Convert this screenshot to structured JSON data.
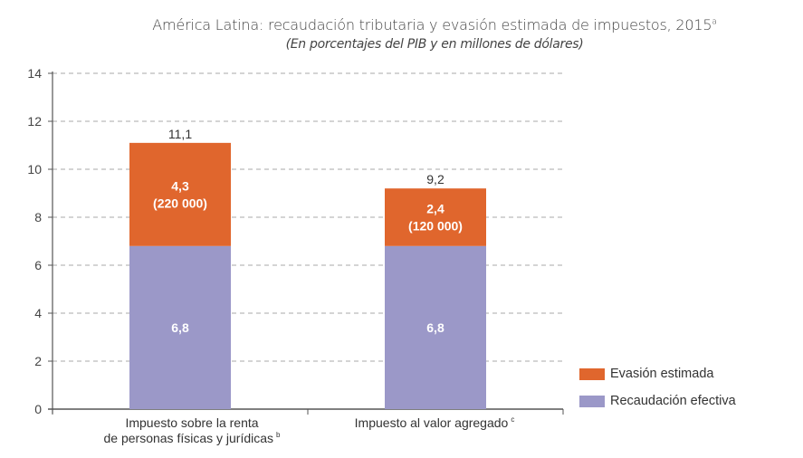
{
  "chart_data": {
    "type": "bar",
    "stacked": true,
    "title": "América Latina: recaudación tributaria y evasión estimada de impuestos, 2015",
    "title_footnote": "a",
    "subtitle": "(En porcentajes del PIB y en millones de dólares)",
    "xlabel": "",
    "ylabel": "",
    "ylim": [
      0,
      14
    ],
    "yticks": [
      0,
      2,
      4,
      6,
      8,
      10,
      12,
      14
    ],
    "grid": true,
    "legend_position": "right-bottom",
    "categories": [
      {
        "label_lines": [
          "Impuesto sobre la renta",
          "de personas físicas y jurídicas"
        ],
        "footnote": "b"
      },
      {
        "label_lines": [
          "Impuesto al valor agregado"
        ],
        "footnote": "c"
      }
    ],
    "series": [
      {
        "name": "Recaudación efectiva",
        "color": "#9b98c8",
        "values": [
          6.8,
          6.8
        ],
        "labels": [
          [
            "6,8"
          ],
          [
            "6,8"
          ]
        ]
      },
      {
        "name": "Evasión estimada",
        "color": "#e0662d",
        "values": [
          4.3,
          2.4
        ],
        "labels": [
          [
            "4,3",
            "(220 000)"
          ],
          [
            "2,4",
            "(120 000)"
          ]
        ]
      }
    ],
    "totals": [
      11.1,
      9.2
    ],
    "total_labels": [
      "11,1",
      "9,2"
    ]
  },
  "legend": [
    {
      "label": "Evasión estimada",
      "color": "#e0662d"
    },
    {
      "label": "Recaudación efectiva",
      "color": "#9b98c8"
    }
  ]
}
